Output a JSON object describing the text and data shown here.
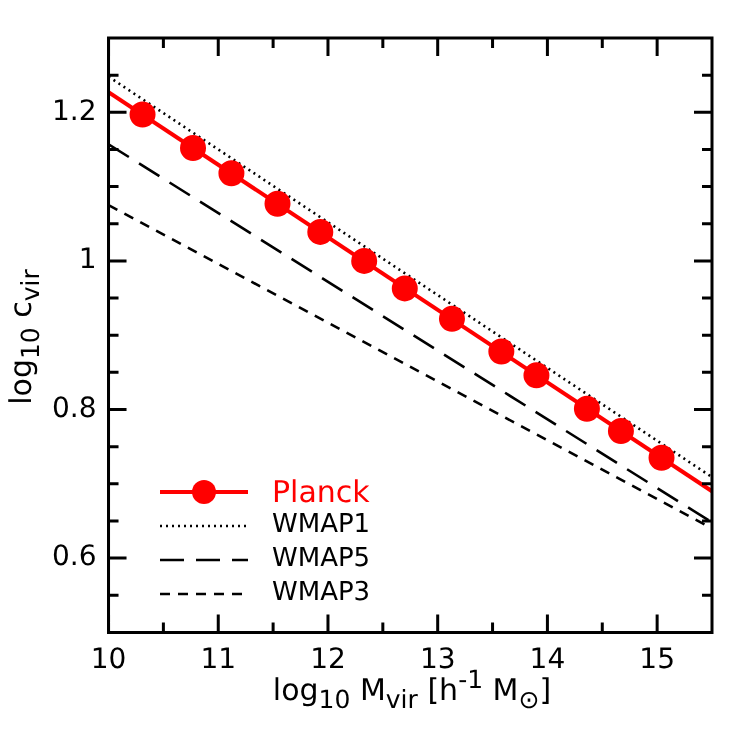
{
  "chart_data": {
    "type": "line",
    "xlabel": "log$_{10}$ M$_{vir}$ [h$^{-1}$ M$_{⊙}$]",
    "ylabel": "log$_{10}$ c$_{vir}$",
    "xlim": [
      10,
      15.5
    ],
    "ylim": [
      0.5,
      1.3
    ],
    "xticks": [
      10,
      {
        "value": 10.5,
        "label": null
      },
      11,
      {
        "value": 11.5,
        "label": null
      },
      12,
      {
        "value": 12.5,
        "label": null
      },
      13,
      {
        "value": 13.5,
        "label": null
      },
      14,
      {
        "value": 14.5,
        "label": null
      },
      15
    ],
    "yticks": [
      {
        "value": 0.55,
        "label": null
      },
      0.6,
      {
        "value": 0.65,
        "label": null
      },
      {
        "value": 0.7,
        "label": null
      },
      {
        "value": 0.75,
        "label": null
      },
      0.8,
      {
        "value": 0.85,
        "label": null
      },
      {
        "value": 0.9,
        "label": null
      },
      {
        "value": 0.95,
        "label": null
      },
      1,
      {
        "value": 1.05,
        "label": null
      },
      {
        "value": 1.1,
        "label": null
      },
      {
        "value": 1.15,
        "label": null
      },
      1.2,
      {
        "value": 1.25,
        "label": null
      }
    ],
    "legend": "bottom left",
    "grid": false,
    "series": [
      {
        "name": "Planck",
        "color": "#ff0000",
        "line_style": "solid",
        "marker": "none",
        "x": [
          10,
          15.5
        ],
        "values": [
          1.227,
          0.69
        ]
      },
      {
        "type": "scatter",
        "color": "#ff0000",
        "marker": "circle",
        "x": [
          10.31,
          10.77,
          11.12,
          11.54,
          11.93,
          12.33,
          12.7,
          13.13,
          13.58,
          13.9,
          14.36,
          14.67,
          15.04
        ],
        "values": [
          1.197,
          1.152,
          1.118,
          1.077,
          1.039,
          1.0,
          0.963,
          0.922,
          0.878,
          0.846,
          0.801,
          0.771,
          0.735
        ]
      },
      {
        "name": "WMAP1",
        "color": "#000000",
        "line_style": "dotted",
        "marker": "none",
        "x": [
          10,
          15.5
        ],
        "values": [
          1.248,
          0.709
        ]
      },
      {
        "name": "WMAP5",
        "color": "#000000",
        "line_style": "dashed",
        "marker": "none",
        "x": [
          10,
          15.5
        ],
        "values": [
          1.157,
          0.648
        ]
      },
      {
        "name": "WMAP3",
        "color": "#000000",
        "line_style": "dashed",
        "marker": "none",
        "x": [
          10,
          15.5
        ],
        "values": [
          1.075,
          0.64
        ]
      }
    ]
  }
}
